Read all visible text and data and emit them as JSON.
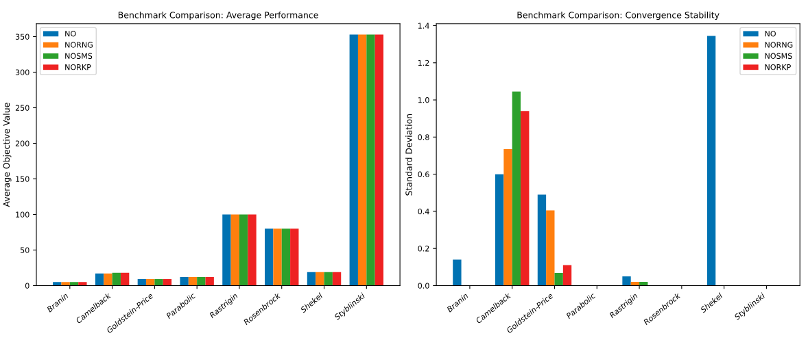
{
  "chart_data": [
    {
      "type": "bar",
      "title": "Benchmark Comparison: Average Performance",
      "ylabel": "Average Objective Value",
      "categories": [
        "Branin",
        "Camelback",
        "Goldstein-Price",
        "Parabolic",
        "Rastrigin",
        "Rosenbrock",
        "Shekel",
        "Styblinski"
      ],
      "series": [
        {
          "name": "NO",
          "color": "#0072b2",
          "values": [
            5,
            17,
            9,
            12,
            100,
            80,
            19,
            353
          ]
        },
        {
          "name": "NORNG",
          "color": "#ff7f0e",
          "values": [
            5,
            17,
            9,
            12,
            100,
            80,
            19,
            353
          ]
        },
        {
          "name": "NOSMS",
          "color": "#2ca02c",
          "values": [
            5,
            18,
            9,
            12,
            100,
            80,
            19,
            353
          ]
        },
        {
          "name": "NORKP",
          "color": "#ee2222",
          "values": [
            5,
            18,
            9,
            12,
            100,
            80,
            19,
            353
          ]
        }
      ],
      "ylim": [
        0,
        368
      ],
      "yticks": [
        0,
        50,
        100,
        150,
        200,
        250,
        300,
        350
      ],
      "legend": "top left",
      "grid": false
    },
    {
      "type": "bar",
      "title": "Benchmark Comparison: Convergence Stability",
      "ylabel": "Standard Deviation",
      "categories": [
        "Branin",
        "Camelback",
        "Goldstein-Price",
        "Parabolic",
        "Rastrigin",
        "Rosenbrock",
        "Shekel",
        "Styblinski"
      ],
      "series": [
        {
          "name": "NO",
          "color": "#0072b2",
          "values": [
            0.14,
            0.6,
            0.49,
            0,
            0.05,
            0,
            1.345,
            0
          ]
        },
        {
          "name": "NORNG",
          "color": "#ff7f0e",
          "values": [
            0,
            0.735,
            0.405,
            0,
            0.02,
            0,
            0,
            0
          ]
        },
        {
          "name": "NOSMS",
          "color": "#2ca02c",
          "values": [
            0,
            1.045,
            0.068,
            0,
            0.02,
            0,
            0,
            0
          ]
        },
        {
          "name": "NORKP",
          "color": "#ee2222",
          "values": [
            0,
            0.94,
            0.11,
            0,
            0,
            0,
            0,
            0
          ]
        }
      ],
      "ylim": [
        0,
        1.41
      ],
      "yticks": [
        {
          "value": 0,
          "label": "0.0"
        },
        0.2,
        0.4,
        0.6,
        0.8,
        {
          "value": 1,
          "label": "1.0"
        },
        1.2,
        1.4
      ],
      "legend": "top right",
      "grid": false
    }
  ]
}
